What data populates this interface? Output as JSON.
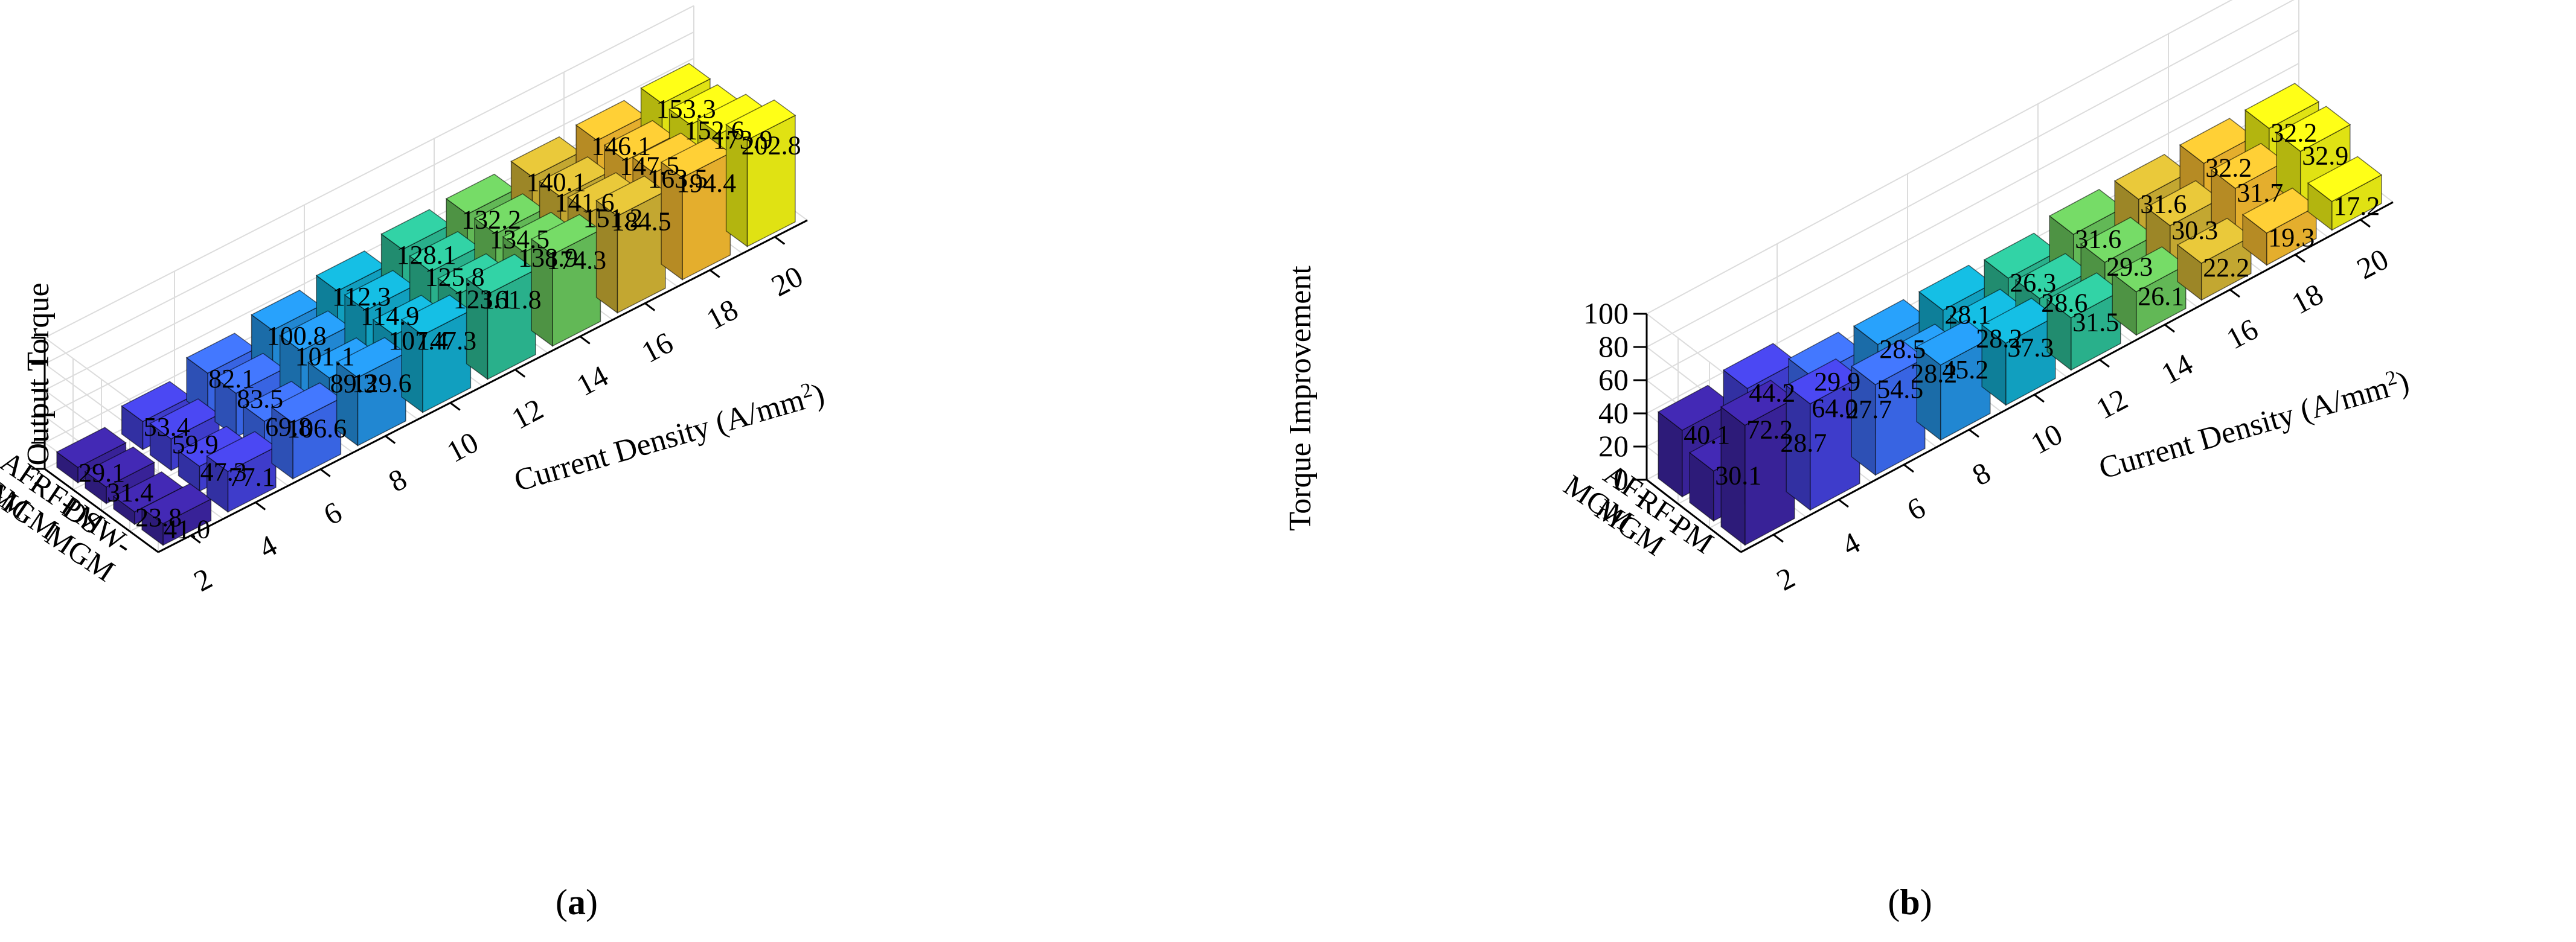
{
  "chart_data": [
    {
      "panel": "(a)",
      "panel_letter": "a",
      "type": "bar3d",
      "zlabel": "Output Torque",
      "xlabel": "Current Density (A/mm²)",
      "xlabel_main": "Current Density (A/mm",
      "xlabel_sup": "2",
      "xlabel_close": ")",
      "x_categories": [
        "2",
        "4",
        "6",
        "8",
        "10",
        "12",
        "14",
        "16",
        "18",
        "20"
      ],
      "y_categories": [
        "DSW-MGM",
        "PM",
        "RF-MGM",
        "AF-MGM"
      ],
      "y_tick_lines": [
        [
          "DSW-",
          "MGM"
        ],
        [
          "PM"
        ],
        [
          "RF-",
          "MGM"
        ],
        [
          "AF-",
          "MGM"
        ]
      ],
      "series": [
        {
          "name": "DSW-MGM",
          "values": [
            41.0,
            77.1,
            106.6,
            129.6,
            147.3,
            161.8,
            174.3,
            184.5,
            194.4,
            202.8
          ]
        },
        {
          "name": "PM",
          "values": [
            23.8,
            47.3,
            69.8,
            89.3,
            107.4,
            123.1,
            138.9,
            151.2,
            163.5,
            173.9
          ]
        },
        {
          "name": "RF-MGM",
          "values": [
            31.4,
            59.9,
            83.5,
            101.1,
            114.9,
            125.8,
            134.5,
            141.6,
            147.5,
            152.6
          ]
        },
        {
          "name": "AF-MGM",
          "values": [
            29.1,
            53.4,
            82.1,
            100.8,
            112.3,
            128.1,
            132.2,
            140.1,
            146.1,
            153.3
          ]
        }
      ],
      "zlim": [
        0,
        250
      ],
      "z_ticks": []
    },
    {
      "panel": "(b)",
      "panel_letter": "b",
      "type": "bar3d",
      "zlabel": "Torque Improvement",
      "xlabel": "Current Density (A/mm²)",
      "xlabel_main": "Current Density (A/mm",
      "xlabel_sup": "2",
      "xlabel_close": ")",
      "x_categories": [
        "2",
        "4",
        "6",
        "8",
        "10",
        "12",
        "14",
        "16",
        "18",
        "20"
      ],
      "y_categories": [
        "PM",
        "RF-MGM",
        "AF-MGM"
      ],
      "y_tick_lines": [
        [
          "PM"
        ],
        [
          "RF-",
          "MGM"
        ],
        [
          "AF-",
          "MGM"
        ]
      ],
      "series": [
        {
          "name": "PM",
          "values": [
            72.2,
            64.0,
            54.5,
            45.2,
            37.3,
            31.5,
            26.1,
            22.2,
            19.3,
            17.2
          ]
        },
        {
          "name": "RF-MGM",
          "values": [
            30.1,
            28.7,
            27.7,
            28.2,
            28.2,
            28.6,
            29.3,
            30.3,
            31.7,
            32.9
          ]
        },
        {
          "name": "AF-MGM",
          "values": [
            40.1,
            44.2,
            29.9,
            28.5,
            28.1,
            26.3,
            31.6,
            31.6,
            32.2,
            32.2
          ]
        }
      ],
      "zlim": [
        0,
        100
      ],
      "z_ticks": [
        "0",
        "20",
        "40",
        "60",
        "80",
        "100"
      ]
    }
  ],
  "colors": {
    "palette": [
      "#3e26a8",
      "#4543e1",
      "#3e6ffb",
      "#2596e9",
      "#13b1d4",
      "#2ec39a",
      "#6dcc5f",
      "#d9ba36",
      "#fdc132",
      "#f9fb15"
    ],
    "edge": "#000000",
    "grid": "#dcdcdc",
    "axis": "#000000"
  }
}
